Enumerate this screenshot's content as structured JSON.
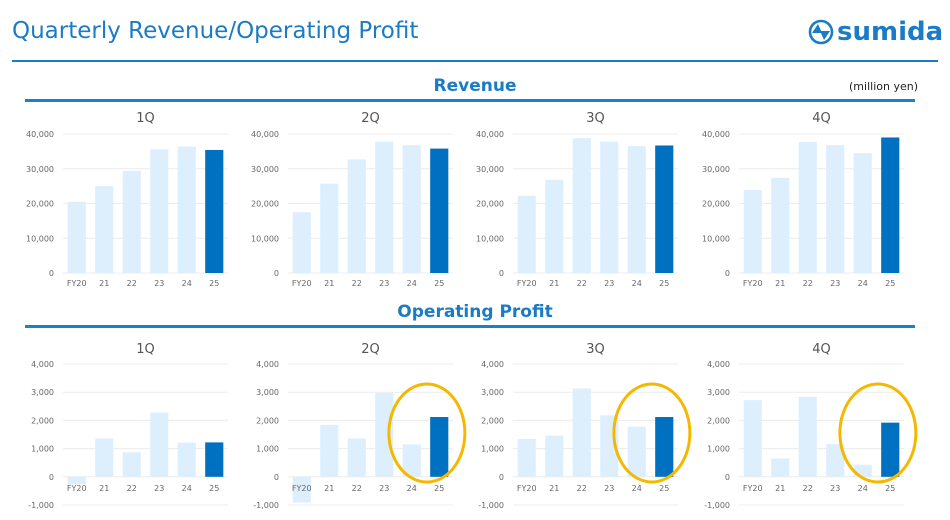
{
  "header": {
    "title": "Quarterly Revenue/Operating Profit",
    "logo_text": "sumida",
    "logo_icon": "sumida-emblem-icon"
  },
  "unit_label": "(million yen)",
  "sections": {
    "revenue_title": "Revenue",
    "op_title": "Operating Profit"
  },
  "colors": {
    "accent": "#1b7bc4",
    "current_bar": "#0070c0",
    "past_bar": "#ddeffd",
    "highlight_circle": "#f5b800"
  },
  "chart_data": [
    {
      "type": "bar",
      "group": "Revenue",
      "title": "1Q",
      "categories": [
        "FY20",
        "21",
        "22",
        "23",
        "24",
        "25"
      ],
      "values": [
        20500,
        25000,
        29400,
        35600,
        36400,
        35400
      ],
      "ylim": [
        0,
        40000
      ],
      "yticks": [
        "0",
        "10,000",
        "20,000",
        "30,000",
        "40,000"
      ],
      "ytick_values": [
        0,
        10000,
        20000,
        30000,
        40000
      ],
      "highlight_index": 5,
      "circled": false,
      "grid": true
    },
    {
      "type": "bar",
      "group": "Revenue",
      "title": "2Q",
      "categories": [
        "FY20",
        "21",
        "22",
        "23",
        "24",
        "25"
      ],
      "values": [
        17500,
        25700,
        32700,
        37800,
        36800,
        35800
      ],
      "ylim": [
        0,
        40000
      ],
      "yticks": [
        "0",
        "10,000",
        "20,000",
        "30,000",
        "40,000"
      ],
      "ytick_values": [
        0,
        10000,
        20000,
        30000,
        40000
      ],
      "highlight_index": 5,
      "circled": false,
      "grid": true
    },
    {
      "type": "bar",
      "group": "Revenue",
      "title": "3Q",
      "categories": [
        "FY20",
        "21",
        "22",
        "23",
        "24",
        "25"
      ],
      "values": [
        22200,
        26800,
        38800,
        37800,
        36500,
        36700
      ],
      "ylim": [
        0,
        40000
      ],
      "yticks": [
        "0",
        "10,000",
        "20,000",
        "30,000",
        "40,000"
      ],
      "ytick_values": [
        0,
        10000,
        20000,
        30000,
        40000
      ],
      "highlight_index": 5,
      "circled": false,
      "grid": true
    },
    {
      "type": "bar",
      "group": "Revenue",
      "title": "4Q",
      "categories": [
        "FY20",
        "21",
        "22",
        "23",
        "24",
        "25"
      ],
      "values": [
        23900,
        27400,
        37700,
        36800,
        34500,
        39000
      ],
      "ylim": [
        0,
        40000
      ],
      "yticks": [
        "0",
        "10,000",
        "20,000",
        "30,000",
        "40,000"
      ],
      "ytick_values": [
        0,
        10000,
        20000,
        30000,
        40000
      ],
      "highlight_index": 5,
      "circled": false,
      "grid": true
    },
    {
      "type": "bar",
      "group": "Operating Profit",
      "title": "1Q",
      "categories": [
        "FY20",
        "21",
        "22",
        "23",
        "24",
        "25"
      ],
      "values": [
        -260,
        1360,
        870,
        2280,
        1210,
        1220
      ],
      "ylim": [
        -1000,
        4000
      ],
      "yticks": [
        "-1,000",
        "0",
        "1,000",
        "2,000",
        "3,000",
        "4,000"
      ],
      "ytick_values": [
        -1000,
        0,
        1000,
        2000,
        3000,
        4000
      ],
      "highlight_index": 5,
      "circled": false,
      "grid": true
    },
    {
      "type": "bar",
      "group": "Operating Profit",
      "title": "2Q",
      "categories": [
        "FY20",
        "21",
        "22",
        "23",
        "24",
        "25"
      ],
      "values": [
        -910,
        1840,
        1360,
        2980,
        1150,
        2120
      ],
      "ylim": [
        -1000,
        4000
      ],
      "yticks": [
        "-1,000",
        "0",
        "1,000",
        "2,000",
        "3,000",
        "4,000"
      ],
      "ytick_values": [
        -1000,
        0,
        1000,
        2000,
        3000,
        4000
      ],
      "highlight_index": 5,
      "circled": true,
      "grid": true
    },
    {
      "type": "bar",
      "group": "Operating Profit",
      "title": "3Q",
      "categories": [
        "FY20",
        "21",
        "22",
        "23",
        "24",
        "25"
      ],
      "values": [
        1340,
        1460,
        3130,
        2180,
        1780,
        2120
      ],
      "ylim": [
        -1000,
        4000
      ],
      "yticks": [
        "-1,000",
        "0",
        "1,000",
        "2,000",
        "3,000",
        "4,000"
      ],
      "ytick_values": [
        -1000,
        0,
        1000,
        2000,
        3000,
        4000
      ],
      "highlight_index": 5,
      "circled": true,
      "grid": true
    },
    {
      "type": "bar",
      "group": "Operating Profit",
      "title": "4Q",
      "categories": [
        "FY20",
        "21",
        "22",
        "23",
        "24",
        "25"
      ],
      "values": [
        2720,
        650,
        2840,
        1160,
        430,
        1920
      ],
      "ylim": [
        -1000,
        4000
      ],
      "yticks": [
        "-1,000",
        "0",
        "1,000",
        "2,000",
        "3,000",
        "4,000"
      ],
      "ytick_values": [
        -1000,
        0,
        1000,
        2000,
        3000,
        4000
      ],
      "highlight_index": 5,
      "circled": true,
      "grid": true
    }
  ]
}
